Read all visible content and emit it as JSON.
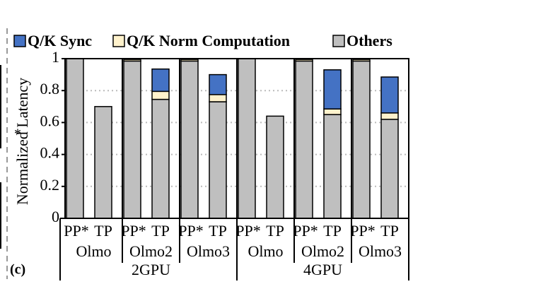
{
  "chart_data": {
    "type": "stacked-bar",
    "y_label": "Normalized Latency",
    "panel_label": "(c)",
    "annotation": "*",
    "categories": [
      "PP*",
      "TP",
      "PP*",
      "TP",
      "PP*",
      "TP",
      "PP*",
      "TP",
      "PP*",
      "TP",
      "PP*",
      "TP"
    ],
    "groups": [
      "Olmo",
      "Olmo2",
      "Olmo3",
      "Olmo",
      "Olmo2",
      "Olmo3"
    ],
    "supergroups": [
      "2GPU",
      "4GPU"
    ],
    "series": [
      {
        "name": "Q/K Sync",
        "color": "#4472c4",
        "values": [
          0,
          0,
          0,
          0.14,
          0,
          0.125,
          0,
          0,
          0,
          0.245,
          0,
          0.225
        ]
      },
      {
        "name": "Q/K Norm Computation",
        "color": "#fff2cc",
        "values": [
          0,
          0,
          0.01,
          0.05,
          0.01,
          0.045,
          0,
          0,
          0.01,
          0.035,
          0.01,
          0.04
        ]
      },
      {
        "name": "Others",
        "color": "#bfbfbf",
        "values": [
          1,
          0.7,
          0.985,
          0.745,
          0.985,
          0.73,
          1,
          0.64,
          0.985,
          0.65,
          0.985,
          0.62
        ]
      }
    ],
    "ylim": [
      0,
      1
    ],
    "yticks": [
      0,
      0.2,
      0.4,
      0.6,
      0.8,
      1
    ],
    "grid": true
  }
}
